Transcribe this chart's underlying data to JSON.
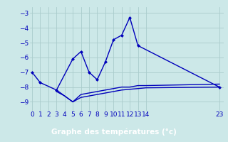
{
  "title": "Graphe des températures (°c)",
  "bg_color": "#cce8e8",
  "plot_bg_color": "#cce8e8",
  "line_color": "#0000bb",
  "grid_color": "#aacccc",
  "xlabel_bg": "#0000bb",
  "xlabel_fg": "#ffffff",
  "ylim": [
    -9.6,
    -2.6
  ],
  "xlim": [
    -0.3,
    23.5
  ],
  "yticks": [
    -3,
    -4,
    -5,
    -6,
    -7,
    -8,
    -9
  ],
  "xticks": [
    0,
    1,
    2,
    3,
    4,
    5,
    6,
    7,
    8,
    9,
    10,
    11,
    12,
    13,
    14,
    23
  ],
  "line1_x": [
    0,
    1,
    3,
    5,
    6,
    7,
    8,
    9,
    10,
    11,
    12,
    13,
    23
  ],
  "line1_y": [
    -7.0,
    -7.7,
    -8.2,
    -6.1,
    -5.6,
    -7.0,
    -7.5,
    -6.3,
    -4.8,
    -4.5,
    -3.3,
    -5.2,
    -8.0
  ],
  "line2_x": [
    3,
    5,
    6,
    7,
    8,
    9,
    10,
    11,
    12,
    13,
    14,
    23
  ],
  "line2_y": [
    -8.2,
    -9.0,
    -8.5,
    -8.4,
    -8.3,
    -8.2,
    -8.1,
    -8.0,
    -8.0,
    -7.9,
    -7.9,
    -7.8
  ],
  "line3_x": [
    3,
    4,
    5,
    6,
    7,
    8,
    9,
    10,
    11,
    12,
    13,
    14,
    23
  ],
  "line3_y": [
    -8.3,
    -8.6,
    -9.0,
    -8.7,
    -8.6,
    -8.5,
    -8.4,
    -8.3,
    -8.2,
    -8.15,
    -8.1,
    -8.05,
    -8.0
  ],
  "marker": "D",
  "markersize": 2.5,
  "linewidth": 1.0,
  "tick_fontsize": 6.5,
  "xlabel_fontsize": 7.5
}
